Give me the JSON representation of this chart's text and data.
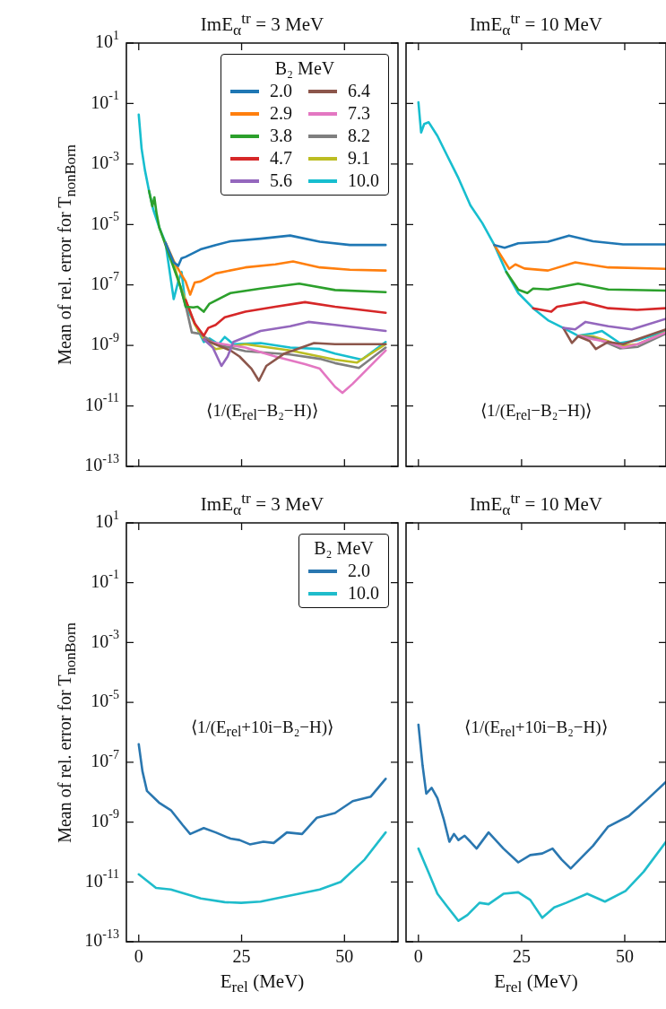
{
  "chart_data": [
    {
      "type": "line",
      "title": "ImE$_{α}$$^{tr}$ = 3 MeV",
      "ylabel": "Mean of rel. error for T$_{nonBorn}$",
      "legend_title": "B₂ MeV",
      "legend": "top right",
      "log": true,
      "tick_labels": "y",
      "annotations": [
        "⟨1/(E$_{rel}$−B₂−H)⟩"
      ],
      "xlim": [
        -3,
        63
      ],
      "xticks": [
        {
          "value": 0,
          "label": null
        },
        {
          "value": 25,
          "label": null
        },
        {
          "value": 50,
          "label": null
        }
      ],
      "ylim": [
        1e-13,
        10
      ],
      "yticks": [
        {
          "value": 10,
          "label": "10$^{1}$"
        },
        {
          "value": 0.1,
          "label": "10$^{-1}$"
        },
        {
          "value": 0.001,
          "label": "10$^{-3}$"
        },
        {
          "value": 1e-05,
          "label": "10$^{-5}$"
        },
        {
          "value": 1e-07,
          "label": "10$^{-7}$"
        },
        {
          "value": 1e-09,
          "label": "10$^{-9}$"
        },
        {
          "value": 1e-11,
          "label": "10$^{-11}$"
        },
        {
          "value": 1e-13,
          "label": "10$^{-13}$"
        }
      ],
      "series": [
        {
          "name": "2.0",
          "color": "#1f77b4",
          "x": [
            6.5,
            8.5,
            9.6,
            10.4,
            11.4,
            15,
            18.7,
            22.3,
            29.6,
            36.8,
            44,
            51.3,
            60
          ],
          "values": [
            2.5e-06,
            5.6e-07,
            4.3e-07,
            7.6e-07,
            8.5e-07,
            1.5e-06,
            2.1e-06,
            2.8e-06,
            3.4e-06,
            4.3e-06,
            2.7e-06,
            2.1e-06,
            2.1e-06
          ]
        },
        {
          "name": "2.9",
          "color": "#ff7f0e",
          "x": [
            6.5,
            8.5,
            10,
            11.4,
            12.5,
            13.6,
            15,
            18.7,
            25.9,
            33.2,
            37.5,
            44,
            51.3,
            60
          ],
          "values": [
            2.5e-06,
            6.3e-07,
            2.7e-07,
            1.3e-07,
            4.8e-08,
            1.2e-07,
            1.3e-07,
            2.4e-07,
            3.8e-07,
            4.8e-07,
            6e-07,
            3.8e-07,
            3.2e-07,
            3e-07
          ]
        },
        {
          "name": "3.8",
          "color": "#2ca02c",
          "x": [
            2.5,
            3.3,
            3.8,
            4.3,
            5,
            10,
            11.4,
            13.3,
            14.3,
            15.8,
            17.2,
            22.3,
            29.6,
            39,
            47.7,
            60
          ],
          "values": [
            0.00013,
            4e-05,
            7.9e-05,
            2.5e-05,
            7.9e-06,
            1e-07,
            1.9e-08,
            1.8e-08,
            1.9e-08,
            1.3e-08,
            2.4e-08,
            5.4e-08,
            7.6e-08,
            1.1e-07,
            6.8e-08,
            5.8e-08
          ]
        },
        {
          "name": "4.7",
          "color": "#d62728",
          "x": [
            11.4,
            13.6,
            15.8,
            16.9,
            18.7,
            20.9,
            25.9,
            33.2,
            40.4,
            47.7,
            60
          ],
          "values": [
            3.2e-08,
            5.4e-09,
            2.1e-09,
            3.8e-09,
            4.8e-09,
            8.5e-09,
            1.3e-08,
            1.9e-08,
            2.7e-08,
            1.9e-08,
            1.2e-08
          ]
        },
        {
          "name": "5.6",
          "color": "#9467bd",
          "x": [
            15.8,
            18,
            20.1,
            21.6,
            23,
            29.6,
            36.8,
            41.2,
            47.7,
            60
          ],
          "values": [
            1.6e-09,
            8.5e-10,
            2.1e-10,
            4.3e-10,
            1.3e-09,
            3e-09,
            4.3e-09,
            6e-09,
            4.8e-09,
            3e-09
          ]
        },
        {
          "name": "6.4",
          "color": "#8c564b",
          "x": [
            15.8,
            17.2,
            22.3,
            24.5,
            27.4,
            29.2,
            31,
            35.4,
            42.6,
            47.7,
            60
          ],
          "values": [
            1.6e-09,
            1.3e-09,
            6.8e-10,
            4.3e-10,
            1.7e-10,
            6.8e-11,
            2.1e-10,
            5.4e-10,
            1.2e-09,
            1.1e-09,
            1.1e-09
          ]
        },
        {
          "name": "7.3",
          "color": "#e377c2",
          "x": [
            15.8,
            17.2,
            25.9,
            33.2,
            40.4,
            44,
            47.7,
            49.5,
            52,
            60
          ],
          "values": [
            1.6e-09,
            1.3e-09,
            8.5e-10,
            4.3e-10,
            2.4e-10,
            1.7e-10,
            4.3e-11,
            2.7e-11,
            5.4e-11,
            6.8e-10
          ]
        },
        {
          "name": "8.2",
          "color": "#7f7f7f",
          "x": [
            10,
            11.4,
            12.9,
            15,
            18.7,
            25.9,
            36.8,
            44,
            47.7,
            53.5,
            60
          ],
          "values": [
            1e-07,
            2.1e-08,
            2.7e-09,
            2.4e-09,
            1.1e-09,
            6.5e-10,
            5e-10,
            3.6e-10,
            2.6e-10,
            1.8e-10,
            8.5e-10
          ]
        },
        {
          "name": "9.1",
          "color": "#bcbd22",
          "x": [
            6.5,
            8.5,
            10,
            11.4,
            13.6,
            15.8,
            18.7,
            25.9,
            36.8,
            47.7,
            53,
            60
          ],
          "values": [
            2.5e-06,
            5e-07,
            1e-07,
            3.2e-08,
            5e-09,
            1.6e-09,
            7.6e-10,
            1.1e-09,
            6.8e-10,
            3.4e-10,
            2.7e-10,
            1.1e-09
          ]
        },
        {
          "name": "10.0",
          "color": "#17becf",
          "x": [
            0,
            0.7,
            1.5,
            2.5,
            3.5,
            5,
            6.5,
            8.5,
            9.6,
            10.4,
            11.4,
            13.6,
            15.8,
            17.2,
            19.4,
            20.9,
            23,
            29.6,
            36.8,
            44,
            47.7,
            54.2,
            60
          ],
          "values": [
            0.043,
            0.0032,
            0.00063,
            0.00013,
            3.2e-05,
            7.9e-06,
            2.5e-06,
            3.4e-08,
            1.3e-07,
            2.7e-07,
            2e-08,
            5.4e-09,
            1.3e-09,
            1.7e-09,
            1.1e-09,
            1.9e-09,
            1.1e-09,
            1.2e-09,
            8.5e-10,
            7.6e-10,
            5.4e-10,
            3.4e-10,
            1.3e-09
          ]
        }
      ]
    },
    {
      "type": "line",
      "title": "ImE$_{α}$$^{tr}$ = 10 MeV",
      "log": true,
      "tick_labels": false,
      "annotations": [
        "⟨1/(E$_{rel}$−B₂−H)⟩"
      ],
      "xlim": [
        -3,
        60
      ],
      "xticks": [
        {
          "value": 0,
          "label": null
        },
        {
          "value": 25,
          "label": null
        },
        {
          "value": 50,
          "label": null
        }
      ],
      "ylim": [
        1e-13,
        10
      ],
      "yticks": [
        {
          "value": 10,
          "label": null
        },
        {
          "value": 0.1,
          "label": null
        },
        {
          "value": 0.001,
          "label": null
        },
        {
          "value": 1e-05,
          "label": null
        },
        {
          "value": 1e-07,
          "label": null
        },
        {
          "value": 1e-09,
          "label": null
        },
        {
          "value": 1e-11,
          "label": null
        },
        {
          "value": 1e-13,
          "label": null
        }
      ],
      "series": [
        {
          "color": "#1f77b4",
          "x": [
            18.4,
            20.9,
            24.2,
            31.4,
            36.5,
            42.3,
            49.6,
            60
          ],
          "values": [
            2.1e-06,
            1.7e-06,
            2.4e-06,
            2.7e-06,
            4.3e-06,
            2.8e-06,
            2.2e-06,
            2.2e-06
          ]
        },
        {
          "color": "#ff7f0e",
          "x": [
            18.4,
            22,
            23.5,
            25.7,
            31.4,
            38,
            46,
            60
          ],
          "values": [
            2.1e-06,
            3.4e-07,
            4.8e-07,
            3.5e-07,
            3e-07,
            5.6e-07,
            3.8e-07,
            3.4e-07
          ]
        },
        {
          "color": "#2ca02c",
          "x": [
            21.3,
            24.2,
            26.4,
            27.8,
            31.4,
            38.7,
            46,
            60
          ],
          "values": [
            2.7e-07,
            7e-08,
            5.4e-08,
            7.6e-08,
            7.1e-08,
            1.1e-07,
            7.1e-08,
            6.5e-08
          ]
        },
        {
          "color": "#d62728",
          "x": [
            27.8,
            32.2,
            33.6,
            40.1,
            46,
            53,
            60
          ],
          "values": [
            1.7e-08,
            1.3e-08,
            1.9e-08,
            2.7e-08,
            1.7e-08,
            1.5e-08,
            1.7e-08
          ]
        },
        {
          "color": "#9467bd",
          "x": [
            35.1,
            38,
            40.5,
            46,
            51.7,
            60
          ],
          "values": [
            3.8e-09,
            3.4e-09,
            6e-09,
            4.3e-09,
            3.4e-09,
            7.6e-09
          ]
        },
        {
          "color": "#8c564b",
          "x": [
            35.1,
            37.2,
            38.7,
            41.5,
            43,
            45.9,
            49.6,
            60
          ],
          "values": [
            3.8e-09,
            1.2e-09,
            2e-09,
            1.4e-09,
            7.6e-10,
            1.3e-09,
            1.1e-09,
            3.4e-09
          ]
        },
        {
          "color": "#e377c2",
          "x": [
            38.7,
            42.3,
            46,
            49.6,
            53.2,
            60
          ],
          "values": [
            2.1e-09,
            1.6e-09,
            1.3e-09,
            8.5e-10,
            1.1e-09,
            2.7e-09
          ]
        },
        {
          "color": "#7f7f7f",
          "x": [
            38.7,
            42.3,
            45.9,
            48.8,
            53.2,
            60
          ],
          "values": [
            2.1e-09,
            1.8e-09,
            1.2e-09,
            8e-10,
            9e-10,
            2.5e-09
          ]
        },
        {
          "color": "#bcbd22",
          "x": [
            38.7,
            42.3,
            45.9,
            48.8,
            53.2,
            60
          ],
          "values": [
            2.1e-09,
            2e-09,
            1.4e-09,
            9.5e-10,
            1.1e-09,
            2.8e-09
          ]
        },
        {
          "color": "#17becf",
          "x": [
            0,
            0.65,
            1.4,
            2.5,
            4.6,
            6.8,
            9.7,
            12.6,
            15.5,
            18.4,
            21.3,
            24.2,
            27.8,
            31.4,
            35.1,
            38.7,
            42.3,
            44.5,
            48.8,
            53.2,
            60
          ],
          "values": [
            0.11,
            0.011,
            0.021,
            0.024,
            0.0085,
            0.0021,
            0.00034,
            4.3e-05,
            1.1e-05,
            2.1e-06,
            2.7e-07,
            5.4e-08,
            1.7e-08,
            6.8e-09,
            3.8e-09,
            2.1e-09,
            2.5e-09,
            3e-09,
            1.2e-09,
            1.5e-09,
            3e-09
          ]
        }
      ]
    },
    {
      "type": "line",
      "title": "ImE$_{α}$$^{tr}$ = 3 MeV",
      "xlabel": "E$_{rel}$ (MeV)",
      "ylabel": "Mean of rel. error for T$_{nonBorn}$",
      "legend_title": "B₂ MeV",
      "legend": "top right",
      "log": true,
      "annotations": [
        "⟨1/(E$_{rel}$+10i−B₂−H)⟩"
      ],
      "xlim": [
        -3,
        63
      ],
      "xticks": [
        0,
        25,
        50
      ],
      "ylim": [
        1e-13,
        10
      ],
      "yticks": [
        {
          "value": 10,
          "label": "10$^{1}$"
        },
        {
          "value": 0.1,
          "label": "10$^{-1}$"
        },
        {
          "value": 0.001,
          "label": "10$^{-3}$"
        },
        {
          "value": 1e-05,
          "label": "10$^{-5}$"
        },
        {
          "value": 1e-07,
          "label": "10$^{-7}$"
        },
        {
          "value": 1e-09,
          "label": "10$^{-9}$"
        },
        {
          "value": 1e-11,
          "label": "10$^{-11}$"
        },
        {
          "value": 1e-13,
          "label": "10$^{-13}$"
        }
      ],
      "series": [
        {
          "name": "2.0",
          "color": "#2a77b0",
          "x": [
            0,
            0.9,
            2,
            4.9,
            7.8,
            10.7,
            12.5,
            15.8,
            18.7,
            22.3,
            24.5,
            27,
            30.3,
            32.8,
            36,
            39.7,
            43.3,
            47.7,
            52,
            56.4,
            60
          ],
          "values": [
            4e-07,
            5e-08,
            1.1e-08,
            4.5e-09,
            2.5e-09,
            7.9e-10,
            4e-10,
            6.3e-10,
            4.5e-10,
            2.8e-10,
            2.5e-10,
            1.8e-10,
            2.2e-10,
            2e-10,
            4.5e-10,
            4e-10,
            1.4e-09,
            2e-09,
            5e-09,
            7.1e-09,
            2.8e-08
          ]
        },
        {
          "name": "10.0",
          "color": "#1fbccb",
          "x": [
            0,
            4.2,
            7.8,
            15.1,
            20.9,
            24.9,
            29.6,
            36.8,
            44,
            49.1,
            54.9,
            60
          ],
          "values": [
            1.8e-11,
            6.3e-12,
            5.6e-12,
            2.8e-12,
            2.1e-12,
            2e-12,
            2.2e-12,
            3.5e-12,
            5.6e-12,
            1e-11,
            5.6e-11,
            4.5e-10
          ]
        }
      ]
    },
    {
      "type": "line",
      "title": "ImE$_{α}$$^{tr}$ = 10 MeV",
      "xlabel": "E$_{rel}$ (MeV)",
      "log": true,
      "tick_labels": "x",
      "annotations": [
        "⟨1/(E$_{rel}$+10i−B₂−H)⟩"
      ],
      "xlim": [
        -3,
        60
      ],
      "xticks": [
        0,
        25,
        50
      ],
      "ylim": [
        1e-13,
        10
      ],
      "yticks": [
        {
          "value": 10,
          "label": null
        },
        {
          "value": 0.1,
          "label": null
        },
        {
          "value": 0.001,
          "label": null
        },
        {
          "value": 1e-05,
          "label": null
        },
        {
          "value": 1e-07,
          "label": null
        },
        {
          "value": 1e-09,
          "label": null
        },
        {
          "value": 1e-11,
          "label": null
        },
        {
          "value": 1e-13,
          "label": null
        }
      ],
      "series": [
        {
          "color": "#2a77b0",
          "x": [
            0,
            1,
            1.9,
            3.2,
            4.6,
            6.1,
            7.5,
            8.6,
            9.7,
            11.2,
            12.6,
            14.1,
            17,
            20.6,
            24.2,
            27.1,
            30,
            32.5,
            34.7,
            36.9,
            40.1,
            42.3,
            46,
            51,
            55.4,
            60
          ],
          "values": [
            1.8e-06,
            7.9e-08,
            8.9e-09,
            1.4e-08,
            6.3e-09,
            1.3e-09,
            2.2e-10,
            4e-10,
            2.5e-10,
            3.5e-10,
            2.2e-10,
            1.3e-10,
            4.5e-10,
            1.3e-10,
            4.5e-11,
            7.9e-11,
            8.9e-11,
            1.3e-10,
            5.6e-11,
            2.8e-11,
            7.9e-11,
            1.6e-10,
            7.1e-10,
            1.6e-09,
            5.6e-09,
            2.2e-08
          ]
        },
        {
          "color": "#1fbccb",
          "x": [
            0,
            2.5,
            4.6,
            6.8,
            9.7,
            11.9,
            14.8,
            17,
            20.6,
            24.2,
            27.1,
            30,
            32.9,
            35.8,
            40.9,
            45.2,
            50.2,
            54.6,
            60
          ],
          "values": [
            1.3e-10,
            2e-11,
            4e-12,
            1.6e-12,
            5e-13,
            7.9e-13,
            2e-12,
            1.8e-12,
            4e-12,
            4.5e-12,
            2.5e-12,
            6.3e-13,
            1.4e-12,
            2e-12,
            4e-12,
            2.2e-12,
            5e-12,
            2.2e-11,
            2.2e-10
          ]
        }
      ]
    }
  ]
}
